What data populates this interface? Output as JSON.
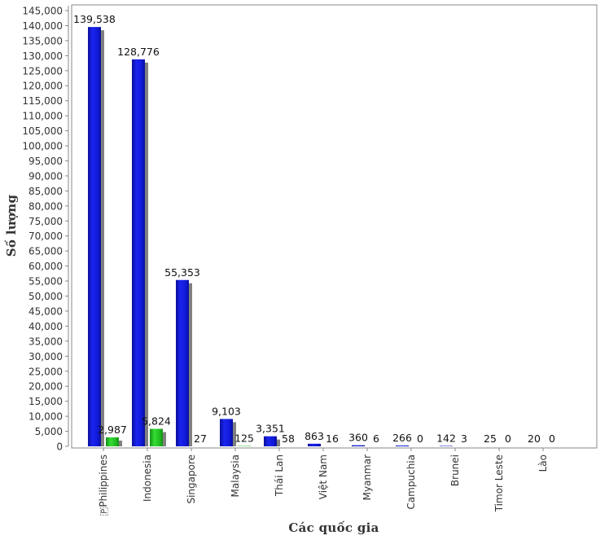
{
  "chart_data": {
    "type": "bar",
    "title": "",
    "xlabel": "Các quốc gia",
    "ylabel": "Số lượng",
    "ylim": [
      0,
      145000
    ],
    "ytick_step": 5000,
    "categories": [
      "🇵Philippines",
      "Indonesia",
      "Singapore",
      "Malaysia",
      "Thái Lan",
      "Việt Nam",
      "Myanmar",
      "Campuchia",
      "Brunei",
      "Timor Leste",
      "Lào"
    ],
    "series": [
      {
        "name": "series-1",
        "color": "#1019d8",
        "values": [
          139538,
          128776,
          55353,
          9103,
          3351,
          863,
          360,
          266,
          142,
          25,
          20
        ]
      },
      {
        "name": "series-2",
        "color": "#22bb22",
        "values": [
          2987,
          5824,
          27,
          125,
          58,
          16,
          6,
          0,
          3,
          0,
          0
        ]
      }
    ],
    "value_labels": {
      "series-1": [
        "139,538",
        "128,776",
        "55,353",
        "9,103",
        "3,351",
        "863",
        "360",
        "266",
        "142",
        "25",
        "20"
      ],
      "series-2": [
        "2,987",
        "5,824",
        "27",
        "125",
        "58",
        "16",
        "6",
        "0",
        "3",
        "0",
        "0"
      ]
    },
    "grid": false,
    "legend": "none"
  }
}
